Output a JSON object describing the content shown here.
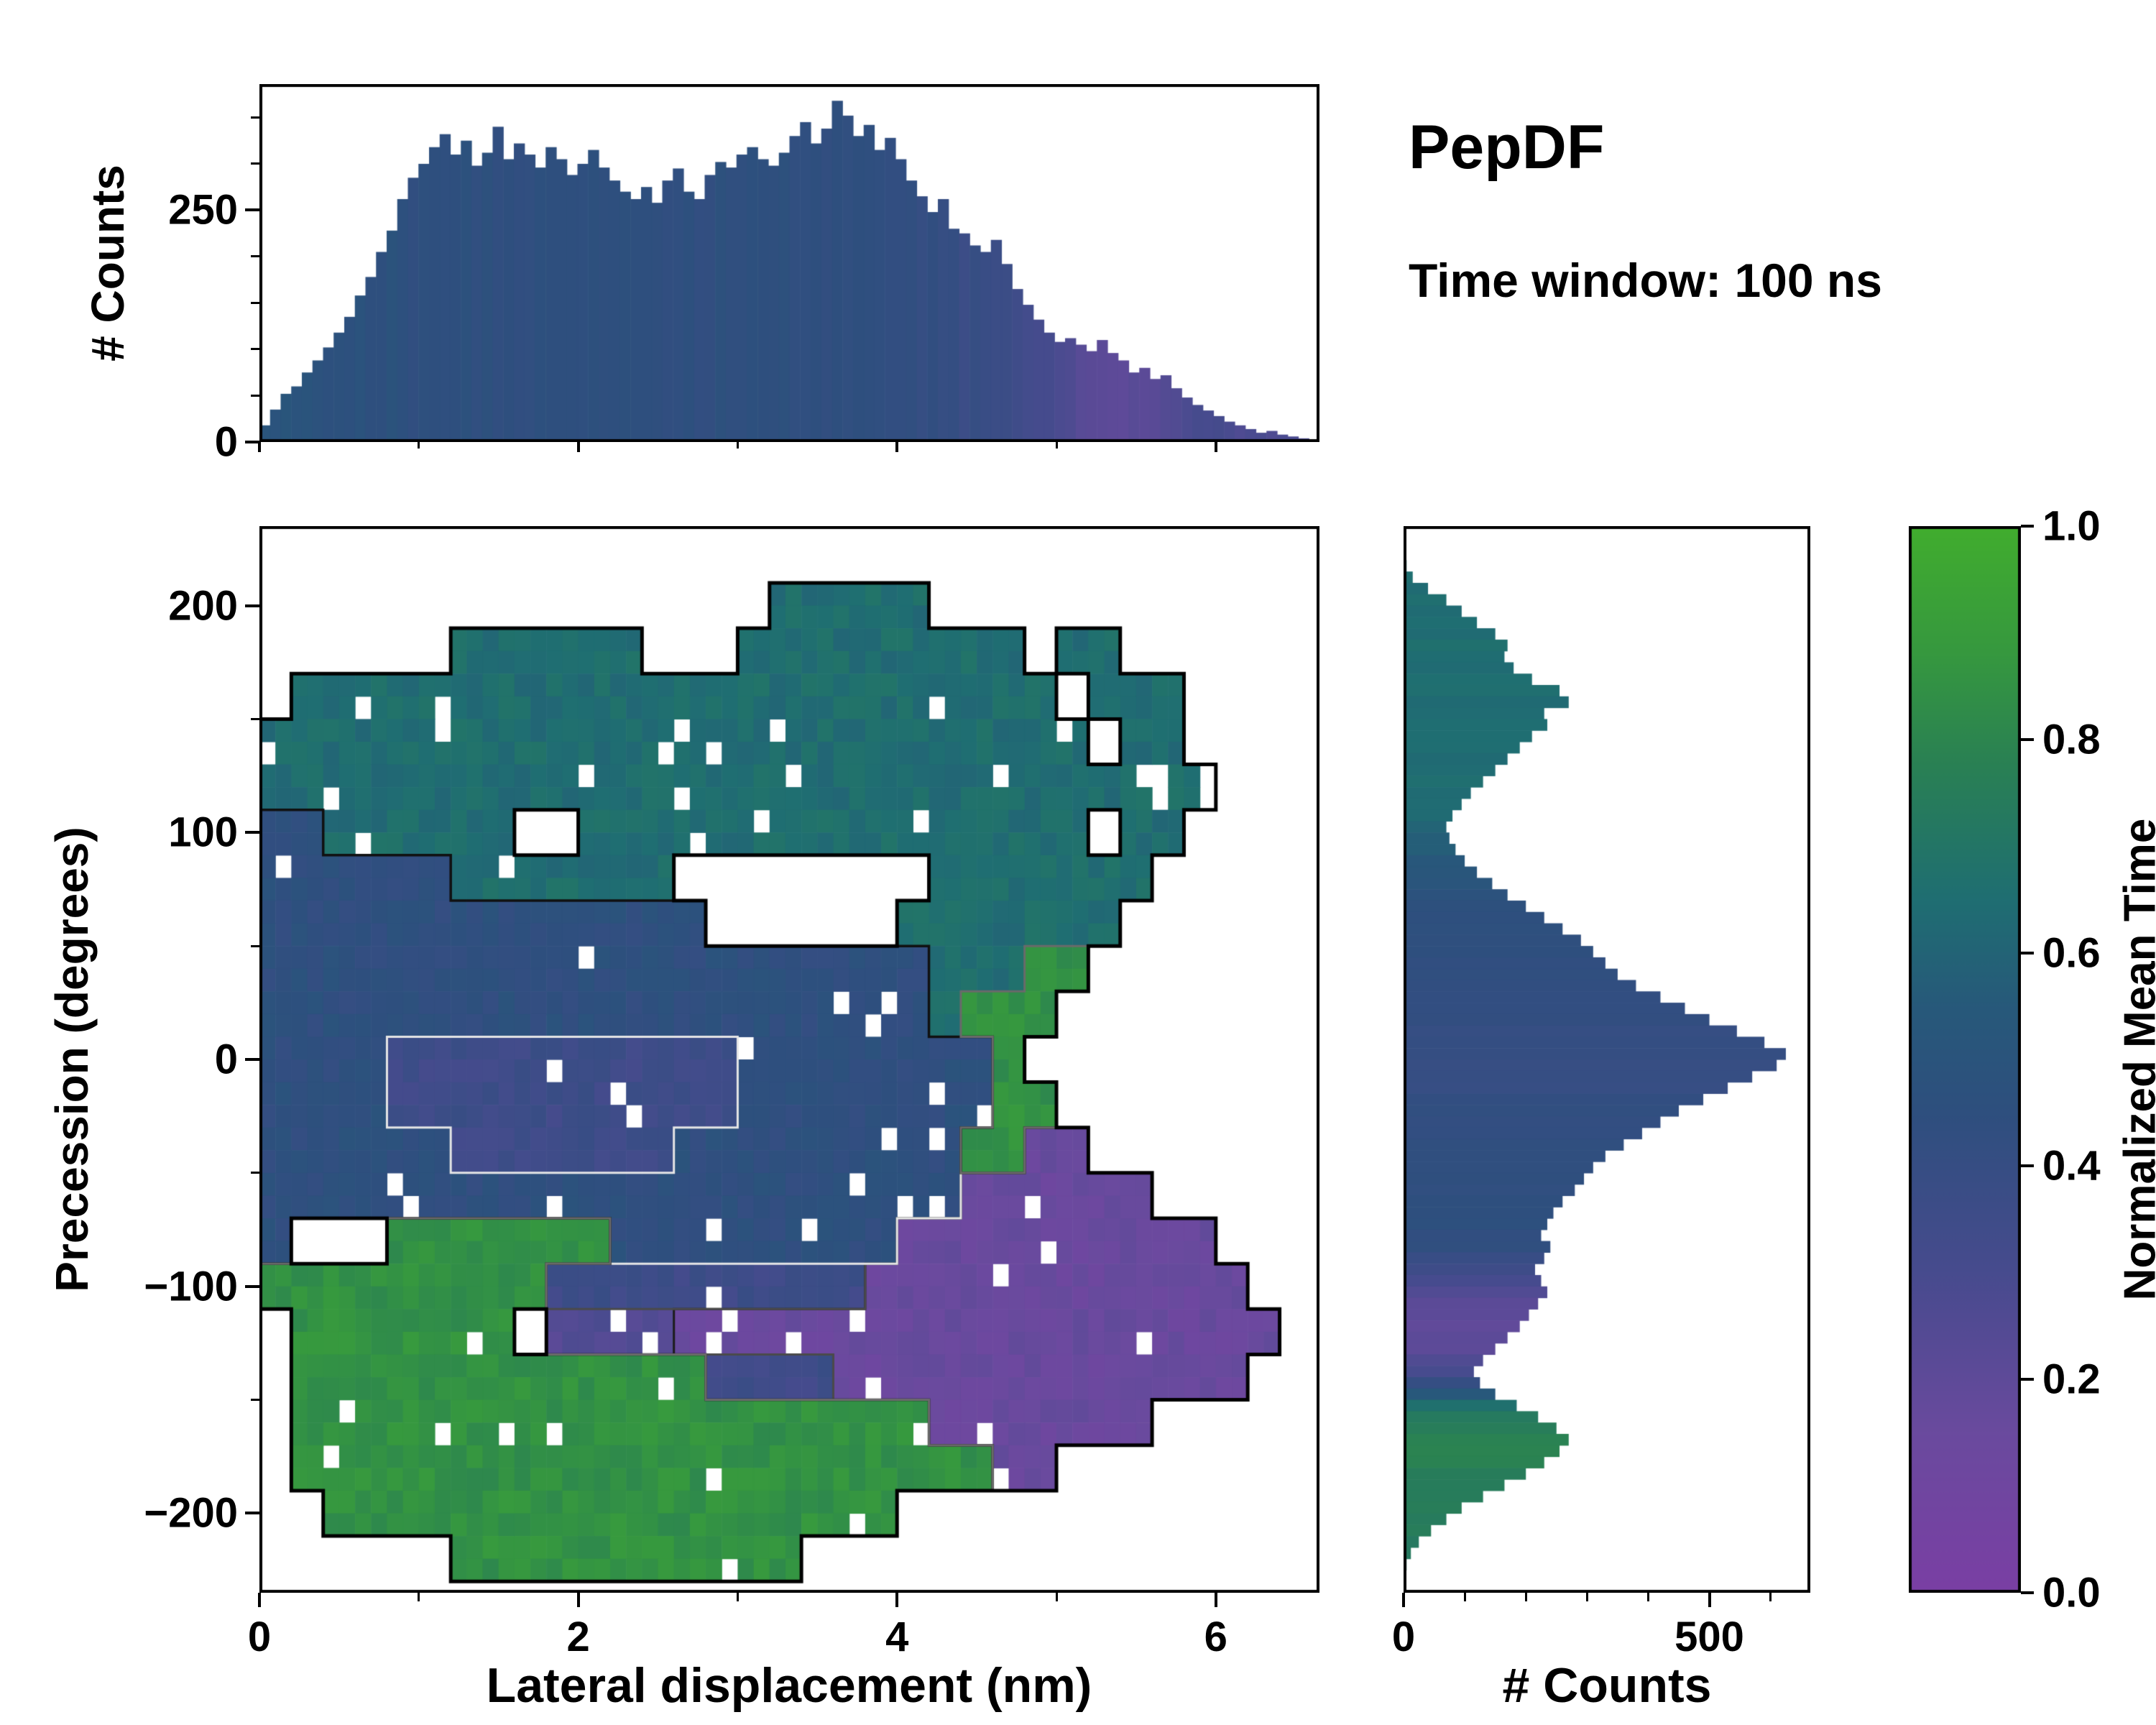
{
  "figure": {
    "title": "PepDF",
    "subtitle": "Time window: 100 ns"
  },
  "colors": {
    "background": "#ffffff",
    "axis": "#000000",
    "outline": "#000000",
    "colormap": [
      [
        0,
        "#7a3fa4"
      ],
      [
        0.15,
        "#6a4a9e"
      ],
      [
        0.3,
        "#474b8e"
      ],
      [
        0.45,
        "#2e4f7e"
      ],
      [
        0.55,
        "#27597a"
      ],
      [
        0.65,
        "#1f6e72"
      ],
      [
        0.78,
        "#2a8153"
      ],
      [
        0.88,
        "#36983f"
      ],
      [
        1,
        "#41ad2e"
      ]
    ]
  },
  "chart_data": [
    {
      "id": "top_histogram",
      "type": "bar",
      "ylabel": "# Counts",
      "xlim": [
        0,
        6.65
      ],
      "ylim": [
        0,
        386
      ],
      "x_start": 0,
      "bin_width": 0.0665,
      "yticks": [
        0,
        250
      ],
      "yticks_minor": [
        50,
        100,
        150,
        200,
        300,
        350
      ],
      "xticks": [
        0,
        2,
        4,
        6
      ],
      "xticks_minor": [
        1,
        3,
        5
      ],
      "counts": [
        18,
        35,
        52,
        60,
        75,
        88,
        102,
        118,
        135,
        158,
        178,
        205,
        228,
        262,
        285,
        300,
        318,
        332,
        310,
        325,
        298,
        312,
        340,
        305,
        322,
        310,
        296,
        318,
        305,
        288,
        300,
        315,
        296,
        282,
        270,
        262,
        275,
        258,
        282,
        295,
        270,
        262,
        288,
        302,
        296,
        310,
        318,
        305,
        298,
        312,
        330,
        345,
        322,
        338,
        368,
        352,
        330,
        342,
        315,
        328,
        305,
        282,
        265,
        248,
        262,
        230,
        225,
        212,
        205,
        218,
        192,
        165,
        148,
        132,
        118,
        108,
        112,
        105,
        98,
        110,
        96,
        88,
        75,
        80,
        68,
        72,
        58,
        48,
        40,
        34,
        28,
        22,
        18,
        14,
        10,
        12,
        8,
        6,
        4,
        3
      ],
      "mean_time": [
        0.52,
        0.5,
        0.5,
        0.48,
        0.5,
        0.48,
        0.46,
        0.48,
        0.46,
        0.48,
        0.46,
        0.46,
        0.48,
        0.46,
        0.44,
        0.46,
        0.46,
        0.44,
        0.46,
        0.46,
        0.44,
        0.46,
        0.44,
        0.46,
        0.44,
        0.44,
        0.46,
        0.44,
        0.46,
        0.44,
        0.44,
        0.46,
        0.44,
        0.44,
        0.46,
        0.44,
        0.44,
        0.46,
        0.44,
        0.44,
        0.46,
        0.44,
        0.44,
        0.46,
        0.44,
        0.44,
        0.46,
        0.44,
        0.44,
        0.46,
        0.44,
        0.44,
        0.46,
        0.44,
        0.44,
        0.44,
        0.46,
        0.44,
        0.44,
        0.44,
        0.42,
        0.42,
        0.4,
        0.42,
        0.4,
        0.4,
        0.38,
        0.4,
        0.38,
        0.36,
        0.36,
        0.34,
        0.32,
        0.3,
        0.3,
        0.28,
        0.26,
        0.24,
        0.22,
        0.22,
        0.2,
        0.2,
        0.22,
        0.2,
        0.22,
        0.24,
        0.26,
        0.28,
        0.3,
        0.3,
        0.32,
        0.3,
        0.28,
        0.3,
        0.28,
        0.26,
        0.28,
        0.3,
        0.28,
        0.26
      ]
    },
    {
      "id": "main_heatmap",
      "type": "heatmap",
      "xlabel": "Lateral displacement (nm)",
      "ylabel": "Precession (degrees)",
      "xlim": [
        0,
        6.65
      ],
      "ylim": [
        -235,
        235
      ],
      "xticks": [
        0,
        2,
        4,
        6
      ],
      "xticks_minor": [
        1,
        3,
        5
      ],
      "yticks": [
        -200,
        -100,
        0,
        100,
        200
      ],
      "yticks_minor": [
        -150,
        -50,
        50,
        150
      ],
      "grid_x0": 0,
      "grid_dx": 0.2,
      "grid_y0": 230,
      "grid_dy": -20,
      "value_map": {
        "1": 0.15,
        "2": 0.25,
        "3": 0.35,
        "4": 0.45,
        "6": 0.65,
        "8": 0.85
      },
      "rows": [
        ".................................",
        "................66666............",
        "......666666...666666666.66......",
        ".666666666666666666666666.666....",
        "66666666666666666666666666.66....",
        "666666666666666666666666666666...",
        "44666666..6666666666666666.66....",
        "4444446666666........6666666.....",
        "44444444444444......6666666......",
        "44444444444444444444466688.......",
        "4444444444444444444446888........",
        "444433333333333444444448.........",
        "4444333333333334444444488........",
        "44444433333334444444448811.......",
        "4444444444444444444444111111.....",
        "4...88888884444444441111111111...",
        "8888888883333333333111111111111..",
        ".8888888.22221111111111111111111.",
        ".888888888888833331111111111111..",
        ".888888888888888888881111111.....",
        ".888888888888888888888811........",
        "..888888888888888888.............",
        "......88888888888................"
      ],
      "contour_levels": [
        {
          "level": 0.2,
          "color": "#1c1c1c",
          "width": 3
        },
        {
          "level": 0.3,
          "color": "#4a4a4a",
          "width": 3
        },
        {
          "level": 0.4,
          "color": "#e6e6e6",
          "width": 3
        },
        {
          "level": 0.55,
          "color": "#101010",
          "width": 3.5
        },
        {
          "level": 0.75,
          "color": "#6a6a6a",
          "width": 3
        }
      ]
    },
    {
      "id": "right_histogram",
      "type": "bar_horizontal",
      "xlabel": "# Counts",
      "xlim": [
        0,
        665
      ],
      "xticks": [
        0,
        500
      ],
      "xticks_minor": [
        100,
        200,
        300,
        400,
        600
      ],
      "y_start": 230,
      "bin_height": 5,
      "counts": [
        0,
        0,
        5,
        15,
        40,
        70,
        95,
        120,
        150,
        170,
        165,
        180,
        210,
        255,
        270,
        230,
        235,
        210,
        190,
        170,
        150,
        130,
        110,
        95,
        80,
        70,
        75,
        85,
        100,
        120,
        145,
        170,
        200,
        230,
        260,
        290,
        310,
        330,
        350,
        380,
        420,
        460,
        500,
        545,
        590,
        625,
        610,
        570,
        530,
        490,
        450,
        420,
        390,
        360,
        330,
        310,
        295,
        280,
        260,
        245,
        235,
        225,
        240,
        230,
        215,
        225,
        235,
        220,
        205,
        190,
        170,
        150,
        130,
        115,
        125,
        150,
        185,
        220,
        250,
        270,
        255,
        230,
        200,
        165,
        130,
        95,
        70,
        45,
        25,
        12,
        5,
        2
      ],
      "mean_time": [
        0.65,
        0.65,
        0.65,
        0.65,
        0.65,
        0.65,
        0.65,
        0.66,
        0.64,
        0.66,
        0.65,
        0.65,
        0.66,
        0.65,
        0.64,
        0.65,
        0.65,
        0.64,
        0.65,
        0.64,
        0.64,
        0.65,
        0.64,
        0.63,
        0.62,
        0.6,
        0.58,
        0.56,
        0.54,
        0.52,
        0.5,
        0.48,
        0.47,
        0.46,
        0.45,
        0.45,
        0.44,
        0.44,
        0.43,
        0.43,
        0.42,
        0.42,
        0.42,
        0.41,
        0.41,
        0.4,
        0.4,
        0.41,
        0.41,
        0.42,
        0.42,
        0.42,
        0.43,
        0.43,
        0.43,
        0.44,
        0.44,
        0.44,
        0.44,
        0.45,
        0.45,
        0.44,
        0.43,
        0.4,
        0.36,
        0.3,
        0.26,
        0.22,
        0.2,
        0.2,
        0.2,
        0.22,
        0.26,
        0.3,
        0.4,
        0.55,
        0.65,
        0.72,
        0.76,
        0.78,
        0.78,
        0.77,
        0.76,
        0.76,
        0.75,
        0.75,
        0.74,
        0.74,
        0.73,
        0.73,
        0.72,
        0.72
      ]
    },
    {
      "id": "colorbar",
      "type": "colorbar",
      "label": "Normalized Mean Time",
      "range": [
        0,
        1
      ],
      "ticks": [
        0,
        0.2,
        0.4,
        0.6,
        0.8,
        1
      ]
    }
  ]
}
